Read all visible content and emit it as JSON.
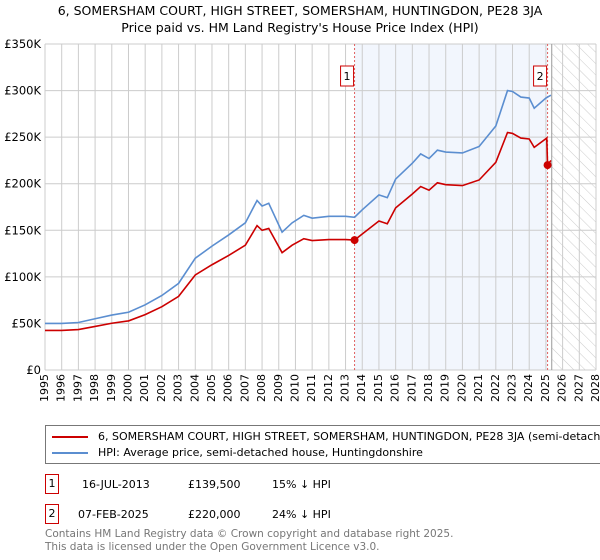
{
  "title": "6, SOMERSHAM COURT, HIGH STREET, SOMERSHAM, HUNTINGDON, PE28 3JA",
  "subtitle": "Price paid vs. HM Land Registry's House Price Index (HPI)",
  "chart_data": {
    "type": "line",
    "xlim": [
      1995,
      2028
    ],
    "ylim": [
      0,
      350000
    ],
    "yticks": [
      {
        "v": 0,
        "l": "£0"
      },
      {
        "v": 50000,
        "l": "£50K"
      },
      {
        "v": 100000,
        "l": "£100K"
      },
      {
        "v": 150000,
        "l": "£150K"
      },
      {
        "v": 200000,
        "l": "£200K"
      },
      {
        "v": 250000,
        "l": "£250K"
      },
      {
        "v": 300000,
        "l": "£300K"
      },
      {
        "v": 350000,
        "l": "£350K"
      }
    ],
    "xticks": [
      "1995",
      "1996",
      "1997",
      "1998",
      "1999",
      "2000",
      "2001",
      "2002",
      "2003",
      "2004",
      "2005",
      "2006",
      "2007",
      "2008",
      "2009",
      "2010",
      "2011",
      "2012",
      "2013",
      "2014",
      "2015",
      "2016",
      "2017",
      "2018",
      "2019",
      "2020",
      "2021",
      "2022",
      "2023",
      "2024",
      "2025",
      "2026",
      "2027",
      "2028"
    ],
    "grid": true,
    "series": [
      {
        "name": "6, SOMERSHAM COURT, HIGH STREET, SOMERSHAM, HUNTINGDON, PE28 3JA (semi-detached house)",
        "color": "#cc0000",
        "points": [
          [
            1995,
            42500
          ],
          [
            1996,
            42500
          ],
          [
            1997,
            43400
          ],
          [
            1998,
            46800
          ],
          [
            1999,
            50200
          ],
          [
            2000,
            52700
          ],
          [
            2001,
            59500
          ],
          [
            2002,
            68000
          ],
          [
            2003,
            79000
          ],
          [
            2004,
            102000
          ],
          [
            2005,
            113000
          ],
          [
            2006,
            123000
          ],
          [
            2007,
            134000
          ],
          [
            2007.7,
            155000
          ],
          [
            2008,
            150000
          ],
          [
            2008.4,
            152000
          ],
          [
            2009.2,
            126000
          ],
          [
            2009.8,
            134000
          ],
          [
            2010.5,
            141000
          ],
          [
            2011,
            139000
          ],
          [
            2012,
            140000
          ],
          [
            2013,
            140000
          ],
          [
            2013.54,
            139500
          ],
          [
            2014,
            146000
          ],
          [
            2015,
            160000
          ],
          [
            2015.5,
            157000
          ],
          [
            2016,
            174000
          ],
          [
            2017,
            189000
          ],
          [
            2017.5,
            197000
          ],
          [
            2018,
            193000
          ],
          [
            2018.5,
            201000
          ],
          [
            2019,
            199000
          ],
          [
            2020,
            198000
          ],
          [
            2021,
            204000
          ],
          [
            2022,
            223000
          ],
          [
            2022.7,
            255000
          ],
          [
            2023,
            254000
          ],
          [
            2023.5,
            249000
          ],
          [
            2024,
            248000
          ],
          [
            2024.3,
            239000
          ],
          [
            2025.05,
            249000
          ],
          [
            2025.1,
            220000
          ],
          [
            2025.3,
            225000
          ]
        ]
      },
      {
        "name": "HPI: Average price, semi-detached house, Huntingdonshire",
        "color": "#5b8ed0",
        "points": [
          [
            1995,
            50000
          ],
          [
            1996,
            50000
          ],
          [
            1997,
            51000
          ],
          [
            1998,
            55000
          ],
          [
            1999,
            59000
          ],
          [
            2000,
            62000
          ],
          [
            2001,
            70000
          ],
          [
            2002,
            80000
          ],
          [
            2003,
            93000
          ],
          [
            2004,
            120000
          ],
          [
            2005,
            133000
          ],
          [
            2006,
            145000
          ],
          [
            2007,
            158000
          ],
          [
            2007.7,
            182000
          ],
          [
            2008,
            176000
          ],
          [
            2008.4,
            179000
          ],
          [
            2009.2,
            148000
          ],
          [
            2009.8,
            158000
          ],
          [
            2010.5,
            166000
          ],
          [
            2011,
            163000
          ],
          [
            2012,
            165000
          ],
          [
            2013,
            165000
          ],
          [
            2013.54,
            164000
          ],
          [
            2014,
            172000
          ],
          [
            2015,
            188000
          ],
          [
            2015.5,
            185000
          ],
          [
            2016,
            205000
          ],
          [
            2017,
            222000
          ],
          [
            2017.5,
            232000
          ],
          [
            2018,
            227000
          ],
          [
            2018.5,
            236000
          ],
          [
            2019,
            234000
          ],
          [
            2020,
            233000
          ],
          [
            2021,
            240000
          ],
          [
            2022,
            262000
          ],
          [
            2022.7,
            300000
          ],
          [
            2023,
            299000
          ],
          [
            2023.5,
            293000
          ],
          [
            2024,
            292000
          ],
          [
            2024.3,
            281000
          ],
          [
            2025,
            292000
          ],
          [
            2025.3,
            295000
          ]
        ]
      }
    ],
    "sales": [
      {
        "label": "1",
        "x": 2013.54,
        "y": 139500
      },
      {
        "label": "2",
        "x": 2025.1,
        "y": 220000
      }
    ],
    "forecast_start": 2025.35
  },
  "legend": {
    "red": "6, SOMERSHAM COURT, HIGH STREET, SOMERSHAM, HUNTINGDON, PE28 3JA (semi-detached house)",
    "blue": "HPI: Average price, semi-detached house, Huntingdonshire"
  },
  "table": [
    {
      "n": "1",
      "date": "16-JUL-2013",
      "price": "£139,500",
      "hpi": "15% ↓ HPI"
    },
    {
      "n": "2",
      "date": "07-FEB-2025",
      "price": "£220,000",
      "hpi": "24% ↓ HPI"
    }
  ],
  "footer": {
    "line1": "Contains HM Land Registry data © Crown copyright and database right 2025.",
    "line2": "This data is licensed under the Open Government Licence v3.0."
  }
}
